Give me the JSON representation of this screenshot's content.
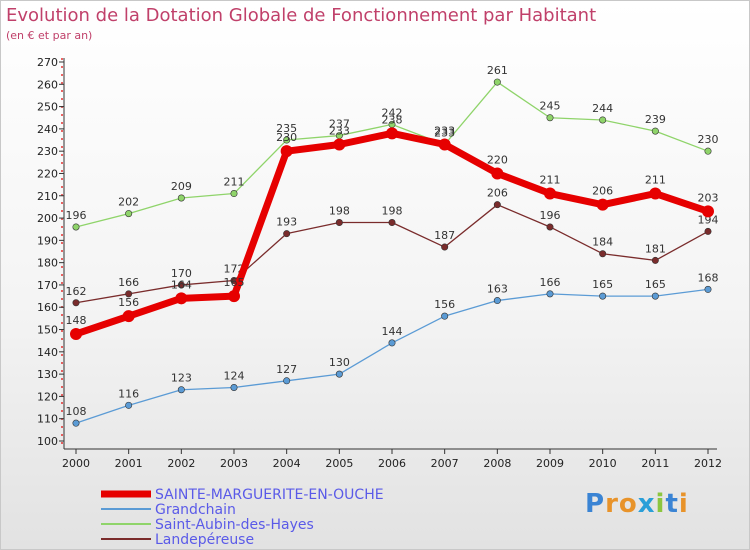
{
  "header": {
    "title": "Evolution de la Dotation Globale de Fonctionnement par Habitant",
    "subtitle": "(en € et par an)"
  },
  "brand": {
    "text": "Proxiti"
  },
  "chart_data": {
    "type": "line",
    "categories": [
      "2000",
      "2001",
      "2002",
      "2003",
      "2004",
      "2005",
      "2006",
      "2007",
      "2008",
      "2009",
      "2010",
      "2011",
      "2012"
    ],
    "ylim": [
      100,
      270
    ],
    "yticks": [
      100,
      110,
      120,
      130,
      140,
      150,
      160,
      170,
      180,
      190,
      200,
      210,
      220,
      230,
      240,
      250,
      260,
      270
    ],
    "grid": false,
    "legend": "bottom-left",
    "series": [
      {
        "name": "SAINTE-MARGUERITE-EN-OUCHE",
        "color": "#e60000",
        "emphasis": true,
        "values": [
          148,
          156,
          164,
          165,
          230,
          233,
          238,
          233,
          220,
          211,
          206,
          211,
          203
        ]
      },
      {
        "name": "Grandchain",
        "color": "#5b9bd5",
        "values": [
          108,
          116,
          123,
          124,
          127,
          130,
          144,
          156,
          163,
          166,
          165,
          165,
          168
        ]
      },
      {
        "name": "Saint-Aubin-des-Hayes",
        "color": "#8fd46a",
        "values": [
          196,
          202,
          209,
          211,
          235,
          237,
          242,
          233,
          261,
          245,
          244,
          239,
          230
        ]
      },
      {
        "name": "Landepéreuse",
        "color": "#7a2c2c",
        "values": [
          162,
          166,
          170,
          172,
          193,
          198,
          198,
          187,
          206,
          196,
          184,
          181,
          194
        ]
      }
    ]
  }
}
